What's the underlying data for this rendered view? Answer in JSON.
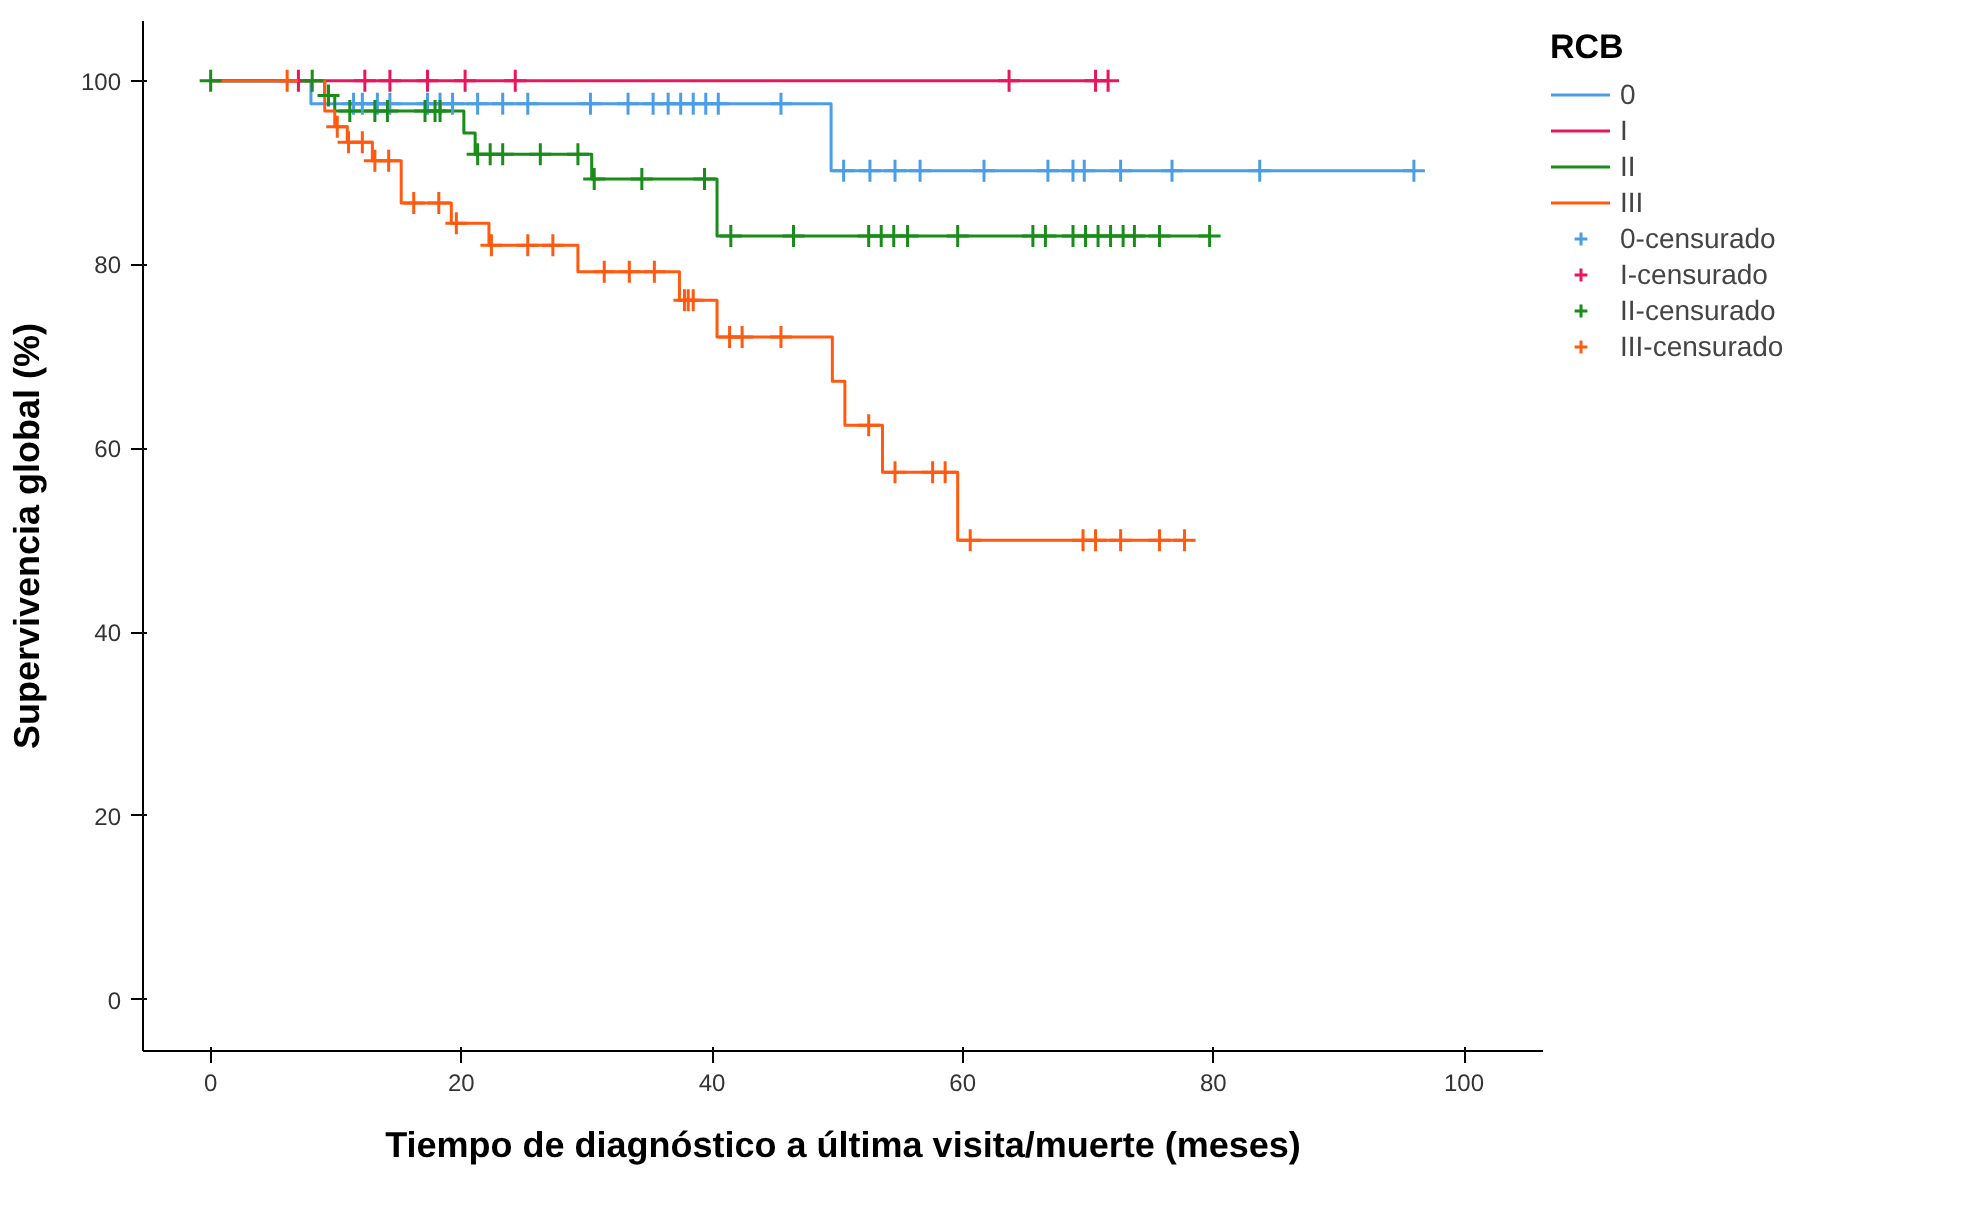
{
  "chart_data": {
    "type": "step",
    "xlabel": "Tiempo de diagnóstico a última visita/muerte (meses)",
    "ylabel": "Supervivencia global (%)",
    "legend_title": "RCB",
    "legend": "right",
    "grid": false,
    "xlim": [
      -5.4,
      106.3
    ],
    "xticks": [
      0,
      20,
      40,
      60,
      80,
      100
    ],
    "ylim": [
      -5.6,
      106.5
    ],
    "yticks": [
      0,
      20,
      40,
      60,
      80,
      100
    ],
    "series": [
      {
        "name": "0",
        "color": "#4a9ee8",
        "x": [
          0,
          8,
          49.5,
          96
        ],
        "values": [
          100,
          97.5,
          90.2,
          90.2
        ]
      },
      {
        "name": "I",
        "color": "#e8175d",
        "x": [
          0,
          71.6
        ],
        "values": [
          100,
          100
        ]
      },
      {
        "name": "II",
        "color": "#1a8c1a",
        "x": [
          0,
          9.1,
          9.9,
          20.2,
          21.1,
          30.4,
          40.4,
          79.7
        ],
        "values": [
          100,
          98.4,
          96.7,
          94.3,
          92,
          89.3,
          83.1,
          83.1
        ]
      },
      {
        "name": "III",
        "color": "#ff5a10",
        "x": [
          0,
          9.1,
          9.9,
          10.9,
          12.9,
          15.2,
          19.2,
          22.2,
          29.3,
          37.4,
          40.4,
          49.6,
          50.6,
          53.6,
          59.6,
          77.7
        ],
        "values": [
          100,
          96.7,
          95,
          93.3,
          91.3,
          86.7,
          84.5,
          82.1,
          79.2,
          76.1,
          72.1,
          67.3,
          62.5,
          57.4,
          50,
          50
        ]
      },
      {
        "type": "scatter",
        "name": "0-censurado",
        "color": "#4a9ee8",
        "marker": "cross",
        "x": [
          11.4,
          12.1,
          13.3,
          14.3,
          17.3,
          18.3,
          19.3,
          21.3,
          23.3,
          25.3,
          30.3,
          33.3,
          35.3,
          36.5,
          37.5,
          38.5,
          39.5,
          40.5,
          45.5,
          50.5,
          52.6,
          54.6,
          56.6,
          61.7,
          66.8,
          68.8,
          69.7,
          72.6,
          76.7,
          83.7,
          96
        ],
        "values": [
          97.5,
          97.5,
          97.5,
          97.5,
          97.5,
          97.5,
          97.5,
          97.5,
          97.5,
          97.5,
          97.5,
          97.5,
          97.5,
          97.5,
          97.5,
          97.5,
          97.5,
          97.5,
          97.5,
          90.2,
          90.2,
          90.2,
          90.2,
          90.2,
          90.2,
          90.2,
          90.2,
          90.2,
          90.2,
          90.2,
          90.2
        ]
      },
      {
        "type": "scatter",
        "name": "I-censurado",
        "color": "#e8175d",
        "marker": "cross",
        "x": [
          7,
          12.3,
          14.3,
          17.3,
          20.3,
          24.3,
          63.7,
          70.6,
          71.6
        ],
        "values": [
          100,
          100,
          100,
          100,
          100,
          100,
          100,
          100,
          100
        ]
      },
      {
        "type": "scatter",
        "name": "II-censurado",
        "color": "#1a8c1a",
        "marker": "cross",
        "x": [
          0,
          8.1,
          9.4,
          11.1,
          13.1,
          14.1,
          17.1,
          17.9,
          18.3,
          21.3,
          22.3,
          23.3,
          26.3,
          29.3,
          30.6,
          34.4,
          39.4,
          41.5,
          46.5,
          52.5,
          53.5,
          54.5,
          55.6,
          59.6,
          65.6,
          66.6,
          68.8,
          69.8,
          70.8,
          71.8,
          72.8,
          73.7,
          75.7,
          79.7
        ],
        "values": [
          100,
          100,
          98.4,
          96.7,
          96.7,
          96.7,
          96.7,
          96.7,
          96.7,
          92,
          92,
          92,
          92,
          92,
          89.3,
          89.3,
          89.3,
          83.1,
          83.1,
          83.1,
          83.1,
          83.1,
          83.1,
          83.1,
          83.1,
          83.1,
          83.1,
          83.1,
          83.1,
          83.1,
          83.1,
          83.1,
          83.1,
          83.1
        ]
      },
      {
        "type": "scatter",
        "name": "III-censurado",
        "color": "#ff5a10",
        "marker": "cross",
        "x": [
          6.1,
          10.1,
          11,
          12.1,
          13.1,
          14.2,
          16.2,
          18.2,
          19.6,
          22.4,
          25.3,
          27.3,
          31.4,
          33.4,
          35.4,
          37.8,
          38.1,
          38.5,
          41.4,
          42.4,
          45.5,
          52.5,
          54.6,
          57.6,
          58.6,
          60.6,
          69.6,
          70.6,
          72.6,
          75.7,
          77.7
        ],
        "values": [
          100,
          95,
          93.3,
          93.3,
          91.3,
          91.3,
          86.7,
          86.7,
          84.5,
          82.1,
          82.1,
          82.1,
          79.2,
          79.2,
          79.2,
          76.1,
          76.1,
          76.1,
          72.1,
          72.1,
          72.1,
          62.5,
          57.4,
          57.4,
          57.4,
          50,
          50,
          50,
          50,
          50,
          50
        ]
      }
    ]
  }
}
